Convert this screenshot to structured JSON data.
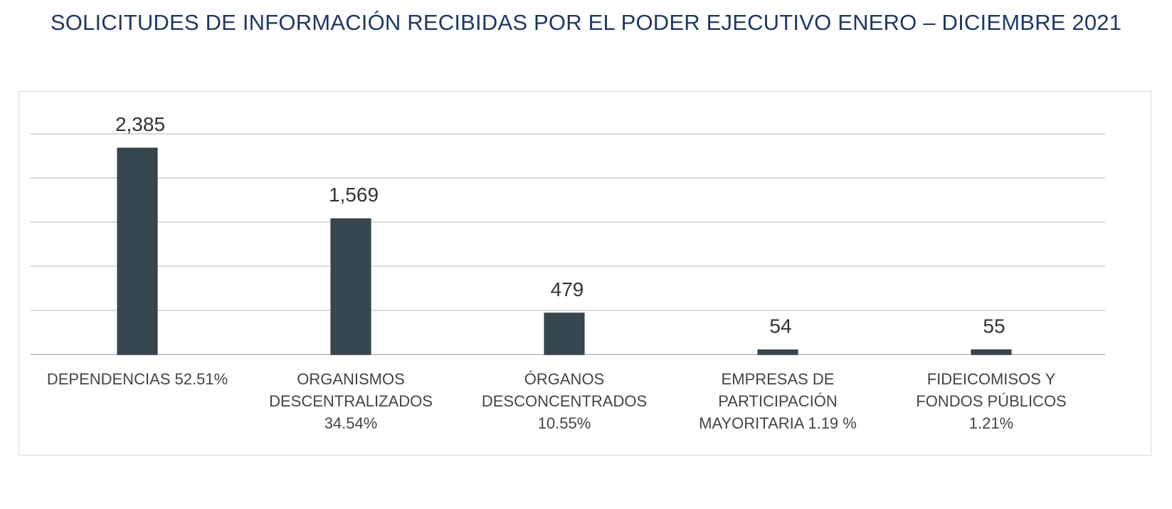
{
  "title": "SOLICITUDES DE INFORMACIÓN RECIBIDAS POR EL PODER EJECUTIVO ENERO – DICIEMBRE 2021",
  "chart_data": {
    "type": "bar",
    "title": "SOLICITUDES DE INFORMACIÓN RECIBIDAS POR EL PODER EJECUTIVO ENERO – DICIEMBRE 2021",
    "categories": [
      [
        "DEPENDENCIAS  52.51%"
      ],
      [
        "ORGANISMOS",
        "DESCENTRALIZADOS",
        "34.54%"
      ],
      [
        "ÓRGANOS",
        "DESCONCENTRADOS",
        "10.55%"
      ],
      [
        "EMPRESAS DE",
        "PARTICIPACIÓN",
        "MAYORITARIA 1.19 %"
      ],
      [
        "FIDEICOMISOS Y",
        "FONDOS PÚBLICOS",
        "1.21%"
      ]
    ],
    "values": [
      2385,
      1569,
      479,
      54,
      55
    ],
    "value_labels": [
      "2,385",
      "1,569",
      "479",
      "54",
      "55"
    ],
    "ylim": [
      0,
      2800
    ],
    "grid": true,
    "bar_color": "#37474f",
    "title_color": "#1f3864"
  }
}
